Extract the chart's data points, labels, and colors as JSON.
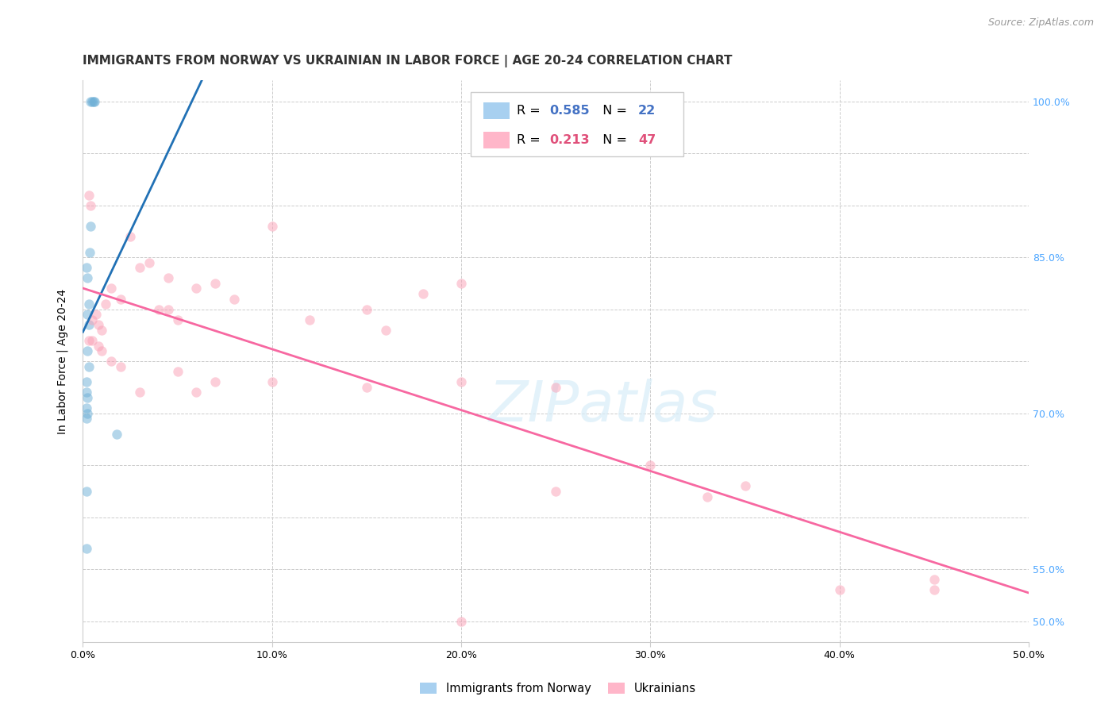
{
  "title": "IMMIGRANTS FROM NORWAY VS UKRAINIAN IN LABOR FORCE | AGE 20-24 CORRELATION CHART",
  "source": "Source: ZipAtlas.com",
  "ylabel": "In Labor Force | Age 20-24",
  "xlim": [
    0.0,
    50.0
  ],
  "ylim": [
    48.0,
    102.0
  ],
  "ytick_vals": [
    50.0,
    55.0,
    60.0,
    65.0,
    70.0,
    75.0,
    80.0,
    85.0,
    90.0,
    95.0,
    100.0
  ],
  "ytick_shown": {
    "50.0": "50.0%",
    "55.0": "55.0%",
    "70.0": "70.0%",
    "85.0": "85.0%",
    "100.0": "100.0%"
  },
  "xtick_vals": [
    0.0,
    10.0,
    20.0,
    30.0,
    40.0,
    50.0
  ],
  "xtick_labels": [
    "0.0%",
    "10.0%",
    "20.0%",
    "30.0%",
    "40.0%",
    "50.0%"
  ],
  "norway_R": 0.585,
  "norway_N": 22,
  "ukraine_R": 0.213,
  "ukraine_N": 47,
  "norway_color": "#6baed6",
  "ukraine_color": "#fa9fb5",
  "norway_line_color": "#2171b5",
  "ukraine_line_color": "#f768a1",
  "legend_norway_fill": "#a8d0f0",
  "legend_ukraine_fill": "#ffb6c9",
  "norway_x": [
    0.4,
    0.5,
    0.55,
    0.6,
    0.35,
    0.4,
    0.2,
    0.25,
    0.3,
    0.25,
    0.3,
    0.25,
    0.3,
    0.2,
    0.2,
    0.25,
    0.2,
    0.25,
    0.2,
    1.8,
    0.2,
    0.2
  ],
  "norway_y": [
    100.0,
    100.0,
    100.0,
    100.0,
    85.5,
    88.0,
    84.0,
    83.0,
    80.5,
    79.5,
    78.5,
    76.0,
    74.5,
    73.0,
    72.0,
    71.5,
    70.5,
    70.0,
    69.5,
    68.0,
    62.5,
    57.0
  ],
  "ukraine_x": [
    0.3,
    0.4,
    0.5,
    0.7,
    0.8,
    1.0,
    1.2,
    1.5,
    2.0,
    2.5,
    3.0,
    3.5,
    4.0,
    4.5,
    5.0,
    6.0,
    7.0,
    8.0,
    10.0,
    12.0,
    15.0,
    16.0,
    18.0,
    20.0,
    25.0,
    30.0,
    35.0,
    40.0,
    45.0,
    0.3,
    0.5,
    0.8,
    1.0,
    1.5,
    2.0,
    3.0,
    4.5,
    5.0,
    6.0,
    7.0,
    10.0,
    15.0,
    20.0,
    25.0,
    33.0,
    45.0,
    20.0
  ],
  "ukraine_y": [
    91.0,
    90.0,
    79.0,
    79.5,
    78.5,
    78.0,
    80.5,
    82.0,
    81.0,
    87.0,
    84.0,
    84.5,
    80.0,
    83.0,
    79.0,
    82.0,
    82.5,
    81.0,
    88.0,
    79.0,
    80.0,
    78.0,
    81.5,
    82.5,
    62.5,
    65.0,
    63.0,
    53.0,
    54.0,
    77.0,
    77.0,
    76.5,
    76.0,
    75.0,
    74.5,
    72.0,
    80.0,
    74.0,
    72.0,
    73.0,
    73.0,
    72.5,
    73.0,
    72.5,
    62.0,
    53.0,
    50.0
  ],
  "background_color": "#ffffff",
  "grid_color": "#cccccc",
  "title_fontsize": 11,
  "axis_label_fontsize": 10,
  "tick_fontsize": 9,
  "right_tick_color": "#4da6ff",
  "scatter_size": 80,
  "scatter_alpha": 0.5
}
